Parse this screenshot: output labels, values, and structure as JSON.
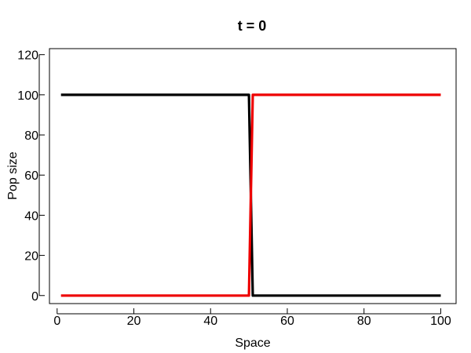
{
  "chart_data": {
    "type": "line",
    "title": "t = 0",
    "xlabel": "Space",
    "ylabel": "Pop size",
    "xlim": [
      -2,
      104
    ],
    "ylim": [
      -4,
      123
    ],
    "x_ticks": [
      0,
      20,
      40,
      60,
      80,
      100
    ],
    "y_ticks": [
      0,
      20,
      40,
      60,
      80,
      100,
      120
    ],
    "grid": false,
    "series": [
      {
        "color": "#000000",
        "x": [
          1,
          50,
          51,
          100
        ],
        "y": [
          100,
          100,
          0,
          0
        ]
      },
      {
        "color": "#ee0000",
        "x": [
          1,
          50,
          51,
          100
        ],
        "y": [
          0,
          0,
          100,
          100
        ]
      }
    ]
  }
}
